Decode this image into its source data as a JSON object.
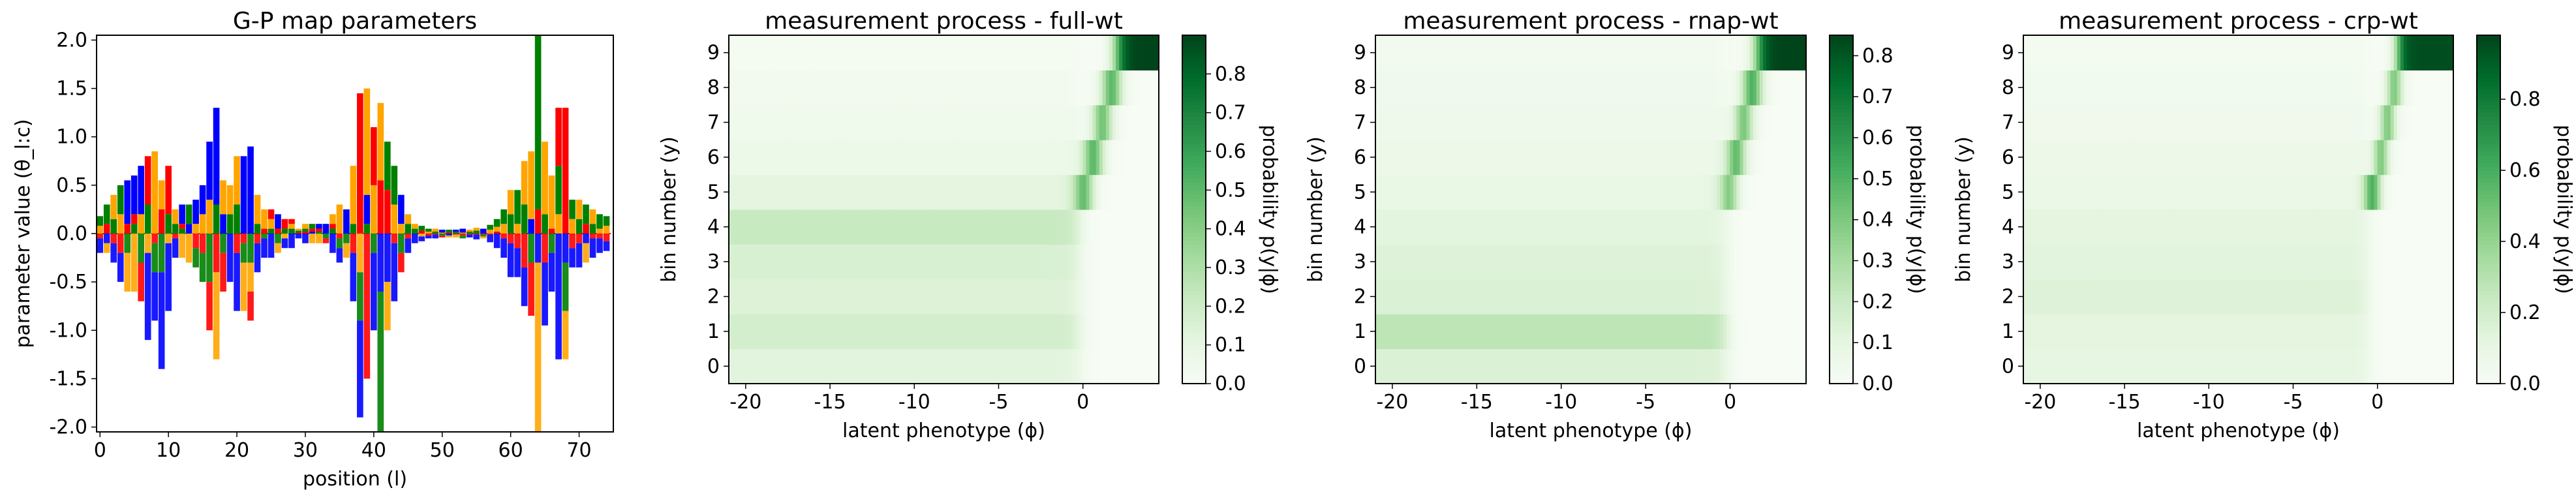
{
  "chart_data": [
    {
      "type": "sequence-logo",
      "title": "G-P map parameters",
      "xlabel": "position (l)",
      "ylabel": "parameter value (θ_l:c)",
      "xlim": [
        -0.5,
        75
      ],
      "ylim": [
        -2.05,
        2.05
      ],
      "xticks": [
        "0",
        "10",
        "20",
        "30",
        "40",
        "50",
        "60",
        "70"
      ],
      "yticks": [
        "-2.0",
        "-1.5",
        "-1.0",
        "-0.5",
        "0.0",
        "0.5",
        "1.0",
        "1.5",
        "2.0"
      ],
      "characters": [
        "A",
        "C",
        "G",
        "T"
      ],
      "colors": {
        "A": "#0000ff",
        "C": "#0000ff",
        "G": "#ffa500",
        "T": "#ff0000",
        "Aalt": "#008000"
      },
      "color_map": {
        "A": "#008000",
        "C": "#0000ff",
        "G": "#ffa500",
        "T": "#ff0000"
      },
      "positions": [
        {
          "l": 0,
          "A": 0.1,
          "C": -0.15,
          "G": 0.08,
          "T": -0.05
        },
        {
          "l": 1,
          "A": 0.2,
          "C": -0.1,
          "G": -0.1,
          "T": 0.1
        },
        {
          "l": 2,
          "A": 0.15,
          "C": -0.2,
          "G": 0.25,
          "T": -0.1
        },
        {
          "l": 3,
          "A": 0.3,
          "C": -0.3,
          "G": 0.2,
          "T": -0.2
        },
        {
          "l": 4,
          "A": -0.2,
          "C": 0.45,
          "G": -0.4,
          "T": 0.1
        },
        {
          "l": 5,
          "A": 0.1,
          "C": 0.4,
          "G": -0.6,
          "T": 0.1
        },
        {
          "l": 6,
          "A": -0.3,
          "C": 0.5,
          "G": 0.2,
          "T": -0.4
        },
        {
          "l": 7,
          "A": 0.3,
          "C": -0.9,
          "G": -0.2,
          "T": 0.5
        },
        {
          "l": 8,
          "A": -0.3,
          "C": -0.5,
          "G": 0.85,
          "T": -0.1
        },
        {
          "l": 9,
          "A": -0.4,
          "C": -1.0,
          "G": 0.3,
          "T": 0.25
        },
        {
          "l": 10,
          "A": 0.2,
          "C": -0.7,
          "G": -0.1,
          "T": 0.5
        },
        {
          "l": 11,
          "A": 0.1,
          "C": -0.2,
          "G": 0.15,
          "T": -0.05
        },
        {
          "l": 12,
          "A": 0.05,
          "C": 0.2,
          "G": -0.25,
          "T": 0.05
        },
        {
          "l": 13,
          "A": 0.2,
          "C": 0.1,
          "G": -0.3,
          "T": 0.0
        },
        {
          "l": 14,
          "A": -0.2,
          "C": 0.25,
          "G": 0.1,
          "T": -0.15
        },
        {
          "l": 15,
          "A": -0.3,
          "C": 0.3,
          "G": 0.2,
          "T": -0.2
        },
        {
          "l": 16,
          "A": -0.5,
          "C": 0.6,
          "G": 0.35,
          "T": -0.5
        },
        {
          "l": 17,
          "A": 0.3,
          "C": 1.0,
          "G": -0.9,
          "T": -0.4
        },
        {
          "l": 18,
          "A": -0.2,
          "C": 0.2,
          "G": 0.35,
          "T": -0.4
        },
        {
          "l": 19,
          "A": 0.2,
          "C": -0.5,
          "G": 0.3,
          "T": 0.0
        },
        {
          "l": 20,
          "A": 0.3,
          "C": -0.6,
          "G": 0.5,
          "T": -0.2
        },
        {
          "l": 21,
          "A": -0.2,
          "C": 0.8,
          "G": -0.5,
          "T": -0.1
        },
        {
          "l": 22,
          "A": -0.3,
          "C": 0.9,
          "G": -0.3,
          "T": -0.3
        },
        {
          "l": 23,
          "A": 0.1,
          "C": -0.3,
          "G": 0.3,
          "T": -0.1
        },
        {
          "l": 24,
          "A": -0.05,
          "C": -0.2,
          "G": 0.2,
          "T": 0.05
        },
        {
          "l": 25,
          "A": 0.05,
          "C": -0.25,
          "G": 0.1,
          "T": 0.1
        },
        {
          "l": 26,
          "A": -0.1,
          "C": 0.15,
          "G": -0.1,
          "T": 0.05
        },
        {
          "l": 27,
          "A": 0.05,
          "C": -0.1,
          "G": -0.05,
          "T": 0.1
        },
        {
          "l": 28,
          "A": 0.05,
          "C": -0.15,
          "G": 0.05,
          "T": 0.05
        },
        {
          "l": 29,
          "A": 0.02,
          "C": -0.05,
          "G": 0.02,
          "T": 0.01
        },
        {
          "l": 30,
          "A": 0.03,
          "C": -0.1,
          "G": 0.05,
          "T": 0.02
        },
        {
          "l": 31,
          "A": 0.05,
          "C": 0.02,
          "G": -0.1,
          "T": 0.03
        },
        {
          "l": 32,
          "A": 0.02,
          "C": 0.05,
          "G": -0.1,
          "T": 0.03
        },
        {
          "l": 33,
          "A": -0.05,
          "C": 0.1,
          "G": 0.0,
          "T": -0.05
        },
        {
          "l": 34,
          "A": 0.05,
          "C": -0.2,
          "G": 0.1,
          "T": 0.05
        },
        {
          "l": 35,
          "A": -0.1,
          "C": -0.15,
          "G": 0.3,
          "T": -0.05
        },
        {
          "l": 36,
          "A": -0.1,
          "C": 0.25,
          "G": -0.15,
          "T": 0.0
        },
        {
          "l": 37,
          "A": 0.1,
          "C": -0.5,
          "G": 0.6,
          "T": -0.2
        },
        {
          "l": 38,
          "A": -0.5,
          "C": -1.0,
          "G": -0.4,
          "T": 1.45
        },
        {
          "l": 39,
          "A": 0.1,
          "C": 0.3,
          "G": 1.1,
          "T": -1.5
        },
        {
          "l": 40,
          "A": -0.2,
          "C": -0.8,
          "G": 0.5,
          "T": 0.6
        },
        {
          "l": 41,
          "A": -1.85,
          "C": -0.6,
          "G": 0.8,
          "T": 0.55
        },
        {
          "l": 42,
          "A": 0.5,
          "C": -0.5,
          "G": -0.5,
          "T": 0.45
        },
        {
          "l": 43,
          "A": 0.4,
          "C": -0.6,
          "G": 0.3,
          "T": -0.1
        },
        {
          "l": 44,
          "A": -0.2,
          "C": 0.3,
          "G": 0.1,
          "T": -0.2
        },
        {
          "l": 45,
          "A": 0.1,
          "C": -0.15,
          "G": 0.1,
          "T": -0.05
        },
        {
          "l": 46,
          "A": 0.05,
          "C": -0.1,
          "G": 0.05,
          "T": 0.0
        },
        {
          "l": 47,
          "A": 0.05,
          "C": -0.05,
          "G": -0.03,
          "T": 0.03
        },
        {
          "l": 48,
          "A": 0.03,
          "C": -0.03,
          "G": 0.02,
          "T": -0.02
        },
        {
          "l": 49,
          "A": 0.02,
          "C": -0.04,
          "G": 0.03,
          "T": -0.01
        },
        {
          "l": 50,
          "A": -0.02,
          "C": 0.03,
          "G": 0.01,
          "T": -0.02
        },
        {
          "l": 51,
          "A": 0.03,
          "C": -0.02,
          "G": -0.02,
          "T": 0.01
        },
        {
          "l": 52,
          "A": 0.02,
          "C": 0.02,
          "G": -0.03,
          "T": -0.01
        },
        {
          "l": 53,
          "A": -0.03,
          "C": 0.04,
          "G": 0.01,
          "T": -0.02
        },
        {
          "l": 54,
          "A": 0.02,
          "C": -0.03,
          "G": 0.02,
          "T": -0.01
        },
        {
          "l": 55,
          "A": 0.03,
          "C": -0.05,
          "G": 0.03,
          "T": -0.01
        },
        {
          "l": 56,
          "A": -0.02,
          "C": 0.05,
          "G": -0.02,
          "T": -0.01
        },
        {
          "l": 57,
          "A": 0.05,
          "C": -0.08,
          "G": 0.04,
          "T": -0.01
        },
        {
          "l": 58,
          "A": 0.08,
          "C": -0.15,
          "G": 0.05,
          "T": 0.02
        },
        {
          "l": 59,
          "A": 0.15,
          "C": -0.2,
          "G": 0.1,
          "T": -0.05
        },
        {
          "l": 60,
          "A": 0.2,
          "C": -0.35,
          "G": 0.25,
          "T": -0.1
        },
        {
          "l": 61,
          "A": 0.35,
          "C": -0.3,
          "G": 0.1,
          "T": -0.15
        },
        {
          "l": 62,
          "A": 0.3,
          "C": -0.4,
          "G": 0.45,
          "T": -0.35
        },
        {
          "l": 63,
          "A": -0.3,
          "C": 0.15,
          "G": 0.7,
          "T": -0.55
        },
        {
          "l": 64,
          "A": 2.05,
          "C": -0.3,
          "G": -2.0,
          "T": 0.25
        },
        {
          "l": 65,
          "A": 0.2,
          "C": -0.65,
          "G": 0.75,
          "T": -0.3
        },
        {
          "l": 66,
          "A": -0.2,
          "C": -0.4,
          "G": 0.55,
          "T": 0.05
        },
        {
          "l": 67,
          "A": 0.5,
          "C": -1.3,
          "G": 0.2,
          "T": 0.6
        },
        {
          "l": 68,
          "A": -0.5,
          "C": -0.3,
          "G": -0.5,
          "T": 1.3
        },
        {
          "l": 69,
          "A": 0.2,
          "C": -0.2,
          "G": 0.15,
          "T": -0.15
        },
        {
          "l": 70,
          "A": 0.15,
          "C": -0.25,
          "G": 0.2,
          "T": -0.1
        },
        {
          "l": 71,
          "A": 0.2,
          "C": -0.1,
          "G": -0.2,
          "T": 0.1
        },
        {
          "l": 72,
          "A": 0.1,
          "C": -0.2,
          "G": 0.15,
          "T": -0.05
        },
        {
          "l": 73,
          "A": 0.15,
          "C": -0.15,
          "G": 0.05,
          "T": -0.05
        },
        {
          "l": 74,
          "A": 0.1,
          "C": -0.1,
          "G": 0.08,
          "T": -0.08
        }
      ]
    },
    {
      "type": "heatmap",
      "title": "measurement process - full-wt",
      "xlabel": "latent phenotype (ϕ)",
      "ylabel": "bin number (y)",
      "colorbar_label": "probability  p(y|ϕ)",
      "colormap": "Greens",
      "xlim": [
        -21,
        4.5
      ],
      "xticks": [
        "-20",
        "-15",
        "-10",
        "-5",
        "0"
      ],
      "yticks": [
        "0",
        "1",
        "2",
        "3",
        "4",
        "5",
        "6",
        "7",
        "8",
        "9"
      ],
      "clim": [
        0,
        0.9
      ],
      "cbar_ticks": [
        "0.0",
        "0.1",
        "0.2",
        "0.3",
        "0.4",
        "0.5",
        "0.6",
        "0.7",
        "0.8"
      ],
      "left_probs": [
        0.1,
        0.16,
        0.12,
        0.14,
        0.2,
        0.11,
        0.07,
        0.05,
        0.03,
        0.02
      ],
      "thresholds": [
        -0.2,
        0.3,
        0.9,
        1.4,
        2.0,
        2.6
      ],
      "threshold_bins": [
        5,
        6,
        7,
        8,
        9
      ],
      "top_prob": 0.9,
      "transition_width": 0.25
    },
    {
      "type": "heatmap",
      "title": "measurement process - rnap-wt",
      "xlabel": "latent phenotype (ϕ)",
      "ylabel": "bin number (y)",
      "colorbar_label": "probability  p(y|ϕ)",
      "colormap": "Greens",
      "xlim": [
        -21,
        4.5
      ],
      "xticks": [
        "-20",
        "-15",
        "-10",
        "-5",
        "0"
      ],
      "yticks": [
        "0",
        "1",
        "2",
        "3",
        "4",
        "5",
        "6",
        "7",
        "8",
        "9"
      ],
      "clim": [
        0,
        0.85
      ],
      "cbar_ticks": [
        "0.0",
        "0.1",
        "0.2",
        "0.3",
        "0.4",
        "0.5",
        "0.6",
        "0.7",
        "0.8"
      ],
      "left_probs": [
        0.12,
        0.22,
        0.12,
        0.11,
        0.09,
        0.08,
        0.06,
        0.05,
        0.04,
        0.03
      ],
      "thresholds": [
        -0.2,
        0.1,
        0.6,
        1.0,
        1.6,
        2.3
      ],
      "threshold_bins": [
        5,
        6,
        7,
        8,
        9
      ],
      "top_prob": 0.85,
      "transition_width": 0.25
    },
    {
      "type": "heatmap",
      "title": "measurement process - crp-wt",
      "xlabel": "latent phenotype (ϕ)",
      "ylabel": "bin number (y)",
      "colorbar_label": "probability  p(y|ϕ)",
      "colormap": "Greens",
      "xlim": [
        -21,
        4.5
      ],
      "xticks": [
        "-20",
        "-15",
        "-10",
        "-5",
        "0"
      ],
      "yticks": [
        "0",
        "1",
        "2",
        "3",
        "4",
        "5",
        "6",
        "7",
        "8",
        "9"
      ],
      "clim": [
        0,
        0.98
      ],
      "cbar_ticks": [
        "0.0",
        "0.2",
        "0.4",
        "0.6",
        "0.8"
      ],
      "left_probs": [
        0.09,
        0.1,
        0.13,
        0.11,
        0.1,
        0.08,
        0.07,
        0.05,
        0.04,
        0.03
      ],
      "thresholds": [
        -0.6,
        0.0,
        0.4,
        0.8,
        1.2,
        2.2
      ],
      "threshold_bins": [
        5,
        6,
        7,
        8,
        9
      ],
      "top_prob": 0.95,
      "transition_width": 0.2
    }
  ]
}
